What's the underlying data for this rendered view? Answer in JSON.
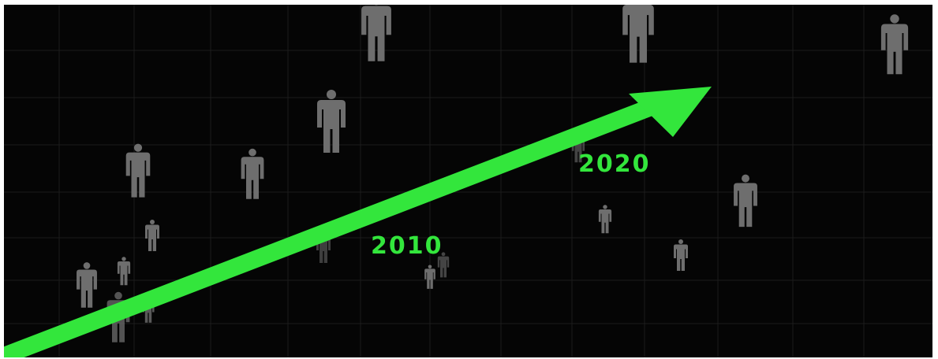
{
  "image": {
    "labels": [
      {
        "text": "2010"
      },
      {
        "text": "2020"
      }
    ],
    "colors": {
      "background": "#050505",
      "grid": "#1c1c1c",
      "figure": "#6e6e6e",
      "arrow": "#33e63c",
      "label": "#33e63c"
    },
    "elements": {
      "arrow": "upward-trend-arrow",
      "figures": "person-silhouette-icon",
      "grid": "background-grid"
    }
  }
}
